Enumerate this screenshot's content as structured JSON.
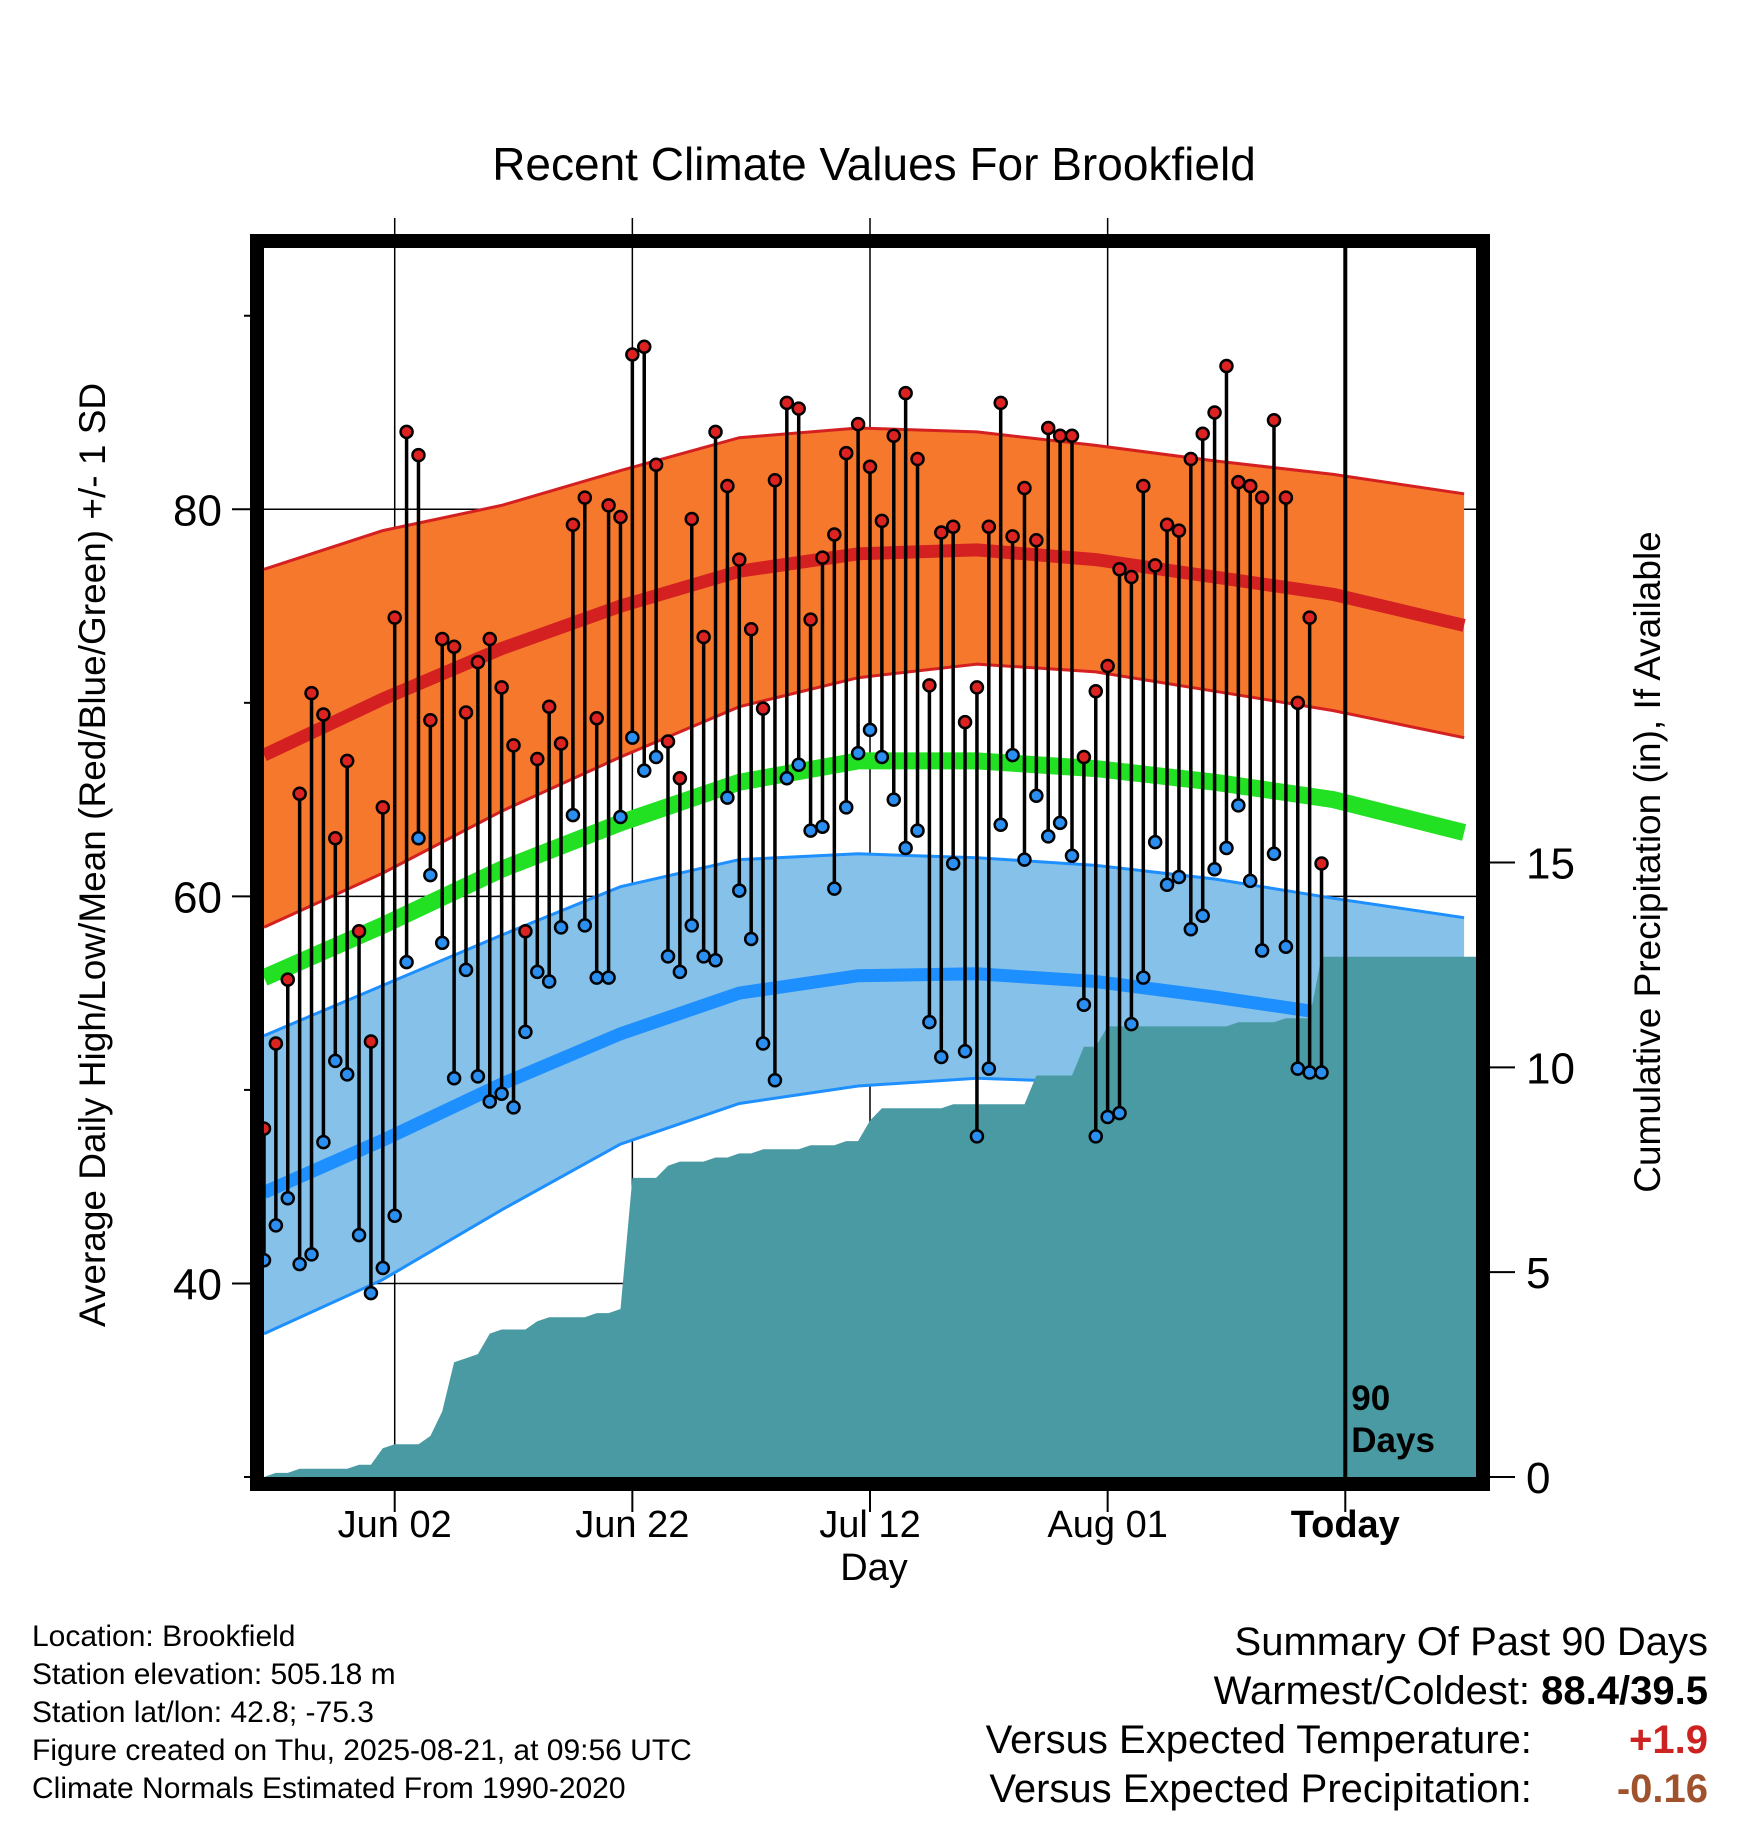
{
  "chart_data": {
    "type": "line",
    "title": "Recent Climate Values For Brookfield",
    "xlabel": "Day",
    "ylabel": "Average Daily High/Low/Mean (Red/Blue/Green) +/- 1 SD",
    "y2label": "Cumulative Precipitation (in), If Available",
    "x_tick_labels": [
      "Jun 02",
      "Jun 22",
      "Jul 12",
      "Aug 01",
      "Today"
    ],
    "y_ticks": [
      "40",
      "60",
      "80"
    ],
    "y2_ticks": [
      "0",
      "5",
      "10",
      "15"
    ],
    "ylim": [
      30,
      93.5
    ],
    "y2lim": [
      0,
      30
    ],
    "xlim": [
      "2025-05-22",
      "2025-09-01"
    ],
    "today": "2025-08-21",
    "today_label": "90 Days",
    "normals": {
      "dates": [
        "2025-05-22",
        "2025-06-01",
        "2025-06-11",
        "2025-06-21",
        "2025-07-01",
        "2025-07-11",
        "2025-07-21",
        "2025-07-31",
        "2025-08-10",
        "2025-08-20",
        "2025-08-31"
      ],
      "high_mean": [
        67.3,
        70.2,
        72.8,
        75.0,
        76.8,
        77.7,
        77.9,
        77.4,
        76.5,
        75.6,
        74.0
      ],
      "high_sd_upper": [
        76.9,
        78.9,
        80.2,
        82.0,
        83.7,
        84.2,
        84.0,
        83.3,
        82.5,
        81.8,
        80.8
      ],
      "high_sd_lower": [
        58.4,
        61.2,
        64.4,
        67.2,
        69.8,
        71.3,
        72.0,
        71.6,
        70.6,
        69.6,
        68.2
      ],
      "mean_mean": [
        55.8,
        58.5,
        61.4,
        63.8,
        65.9,
        67.0,
        67.0,
        66.6,
        65.9,
        65.0,
        63.3
      ],
      "low_mean": [
        44.7,
        47.4,
        50.3,
        52.9,
        55.0,
        55.9,
        56.0,
        55.6,
        54.8,
        53.9,
        52.2
      ],
      "low_sd_upper": [
        52.8,
        55.4,
        58.0,
        60.5,
        61.9,
        62.2,
        62.0,
        61.6,
        60.9,
        59.9,
        58.9
      ],
      "low_sd_lower": [
        37.4,
        40.2,
        43.8,
        47.2,
        49.3,
        50.2,
        50.6,
        50.4,
        49.5,
        47.8,
        45.8
      ]
    },
    "observed": {
      "start_date": "2025-05-22",
      "high": [
        48.0,
        52.4,
        55.7,
        65.3,
        70.5,
        69.4,
        63.0,
        67.0,
        58.2,
        52.5,
        64.6,
        74.4,
        84.0,
        82.8,
        69.1,
        73.3,
        72.9,
        69.5,
        72.1,
        73.3,
        70.8,
        67.8,
        58.2,
        67.1,
        69.8,
        67.9,
        79.2,
        80.6,
        69.2,
        80.2,
        79.6,
        88.0,
        88.4,
        82.3,
        68.0,
        66.1,
        79.5,
        73.4,
        84.0,
        81.2,
        77.4,
        73.8,
        69.7,
        81.5,
        85.5,
        85.2,
        74.3,
        77.5,
        78.7,
        82.9,
        84.4,
        82.2,
        79.4,
        83.8,
        86.0,
        82.6,
        70.9,
        78.8,
        79.1,
        69.0,
        70.8,
        79.1,
        85.5,
        78.6,
        81.1,
        78.4,
        84.2,
        83.8,
        83.8,
        67.2,
        70.6,
        71.9,
        76.9,
        76.5,
        81.2,
        77.1,
        79.2,
        78.9,
        82.6,
        83.9,
        85.0,
        87.4,
        81.4,
        81.2,
        80.6,
        84.6,
        80.6,
        70.0,
        74.4,
        61.7
      ],
      "low": [
        41.2,
        43.0,
        44.4,
        41.0,
        41.5,
        47.3,
        51.5,
        50.8,
        42.5,
        39.5,
        40.8,
        43.5,
        56.6,
        63.0,
        61.1,
        57.6,
        50.6,
        56.2,
        50.7,
        49.4,
        49.8,
        49.1,
        53.0,
        56.1,
        55.6,
        58.4,
        64.2,
        58.5,
        55.8,
        55.8,
        64.1,
        68.2,
        66.5,
        67.2,
        56.9,
        56.1,
        58.5,
        56.9,
        56.7,
        65.1,
        60.3,
        57.8,
        52.4,
        50.5,
        66.1,
        66.8,
        63.4,
        63.6,
        60.4,
        64.6,
        67.4,
        68.6,
        67.2,
        65.0,
        62.5,
        63.4,
        53.5,
        51.7,
        61.7,
        52.0,
        47.6,
        51.1,
        63.7,
        67.3,
        61.9,
        65.2,
        63.1,
        63.8,
        62.1,
        54.4,
        47.6,
        48.6,
        48.8,
        53.4,
        55.8,
        62.8,
        60.6,
        61.0,
        58.3,
        59.0,
        61.4,
        62.5,
        64.7,
        60.8,
        57.2,
        62.2,
        57.4,
        51.1,
        50.9,
        50.9
      ]
    },
    "precipitation": {
      "start_date": "2025-05-22",
      "cumulative": [
        0.0,
        0.1,
        0.1,
        0.2,
        0.2,
        0.2,
        0.2,
        0.2,
        0.3,
        0.3,
        0.7,
        0.8,
        0.8,
        0.8,
        1.0,
        1.6,
        2.8,
        2.9,
        3.0,
        3.5,
        3.6,
        3.6,
        3.6,
        3.8,
        3.9,
        3.9,
        3.9,
        3.9,
        4.0,
        4.0,
        4.1,
        7.3,
        7.3,
        7.3,
        7.6,
        7.7,
        7.7,
        7.7,
        7.8,
        7.8,
        7.9,
        7.9,
        8.0,
        8.0,
        8.0,
        8.0,
        8.1,
        8.1,
        8.1,
        8.2,
        8.2,
        8.7,
        9.0,
        9.0,
        9.0,
        9.0,
        9.0,
        9.0,
        9.1,
        9.1,
        9.1,
        9.1,
        9.1,
        9.1,
        9.1,
        9.8,
        9.8,
        9.8,
        9.8,
        10.5,
        10.5,
        11.0,
        11.0,
        11.0,
        11.0,
        11.0,
        11.0,
        11.0,
        11.0,
        11.0,
        11.0,
        11.0,
        11.1,
        11.1,
        11.1,
        11.1,
        11.2,
        11.2,
        11.2,
        12.7,
        12.7,
        12.7,
        12.7,
        12.7,
        12.7,
        12.7,
        12.7,
        12.7,
        12.7,
        12.7
      ]
    },
    "grid": true,
    "colors": {
      "high_band": "#f5782d",
      "high_line": "#d42020",
      "low_band": "#85c1e9",
      "low_line": "#1e8fff",
      "mean_line": "#22e022",
      "precip_fill": "#4a9aa3",
      "high_marker": "#dd2222",
      "low_marker": "#2a8ff0"
    }
  },
  "info": {
    "location": "Location: Brookfield",
    "elevation": "Station elevation: 505.18 m",
    "latlon": "Station lat/lon: 42.8; -75.3",
    "created": "Figure created on Thu, 2025-08-21, at 09:56 UTC",
    "normals_period": "Climate Normals Estimated From 1990-2020"
  },
  "summary": {
    "heading": "Summary Of Past 90 Days",
    "warm_cold_label": "Warmest/Coldest:",
    "warm_cold_value": "88.4/39.5",
    "temp_label": "Versus Expected Temperature:",
    "temp_value": "+1.9",
    "precip_label": "Versus Expected Precipitation:",
    "precip_value": "-0.16"
  }
}
